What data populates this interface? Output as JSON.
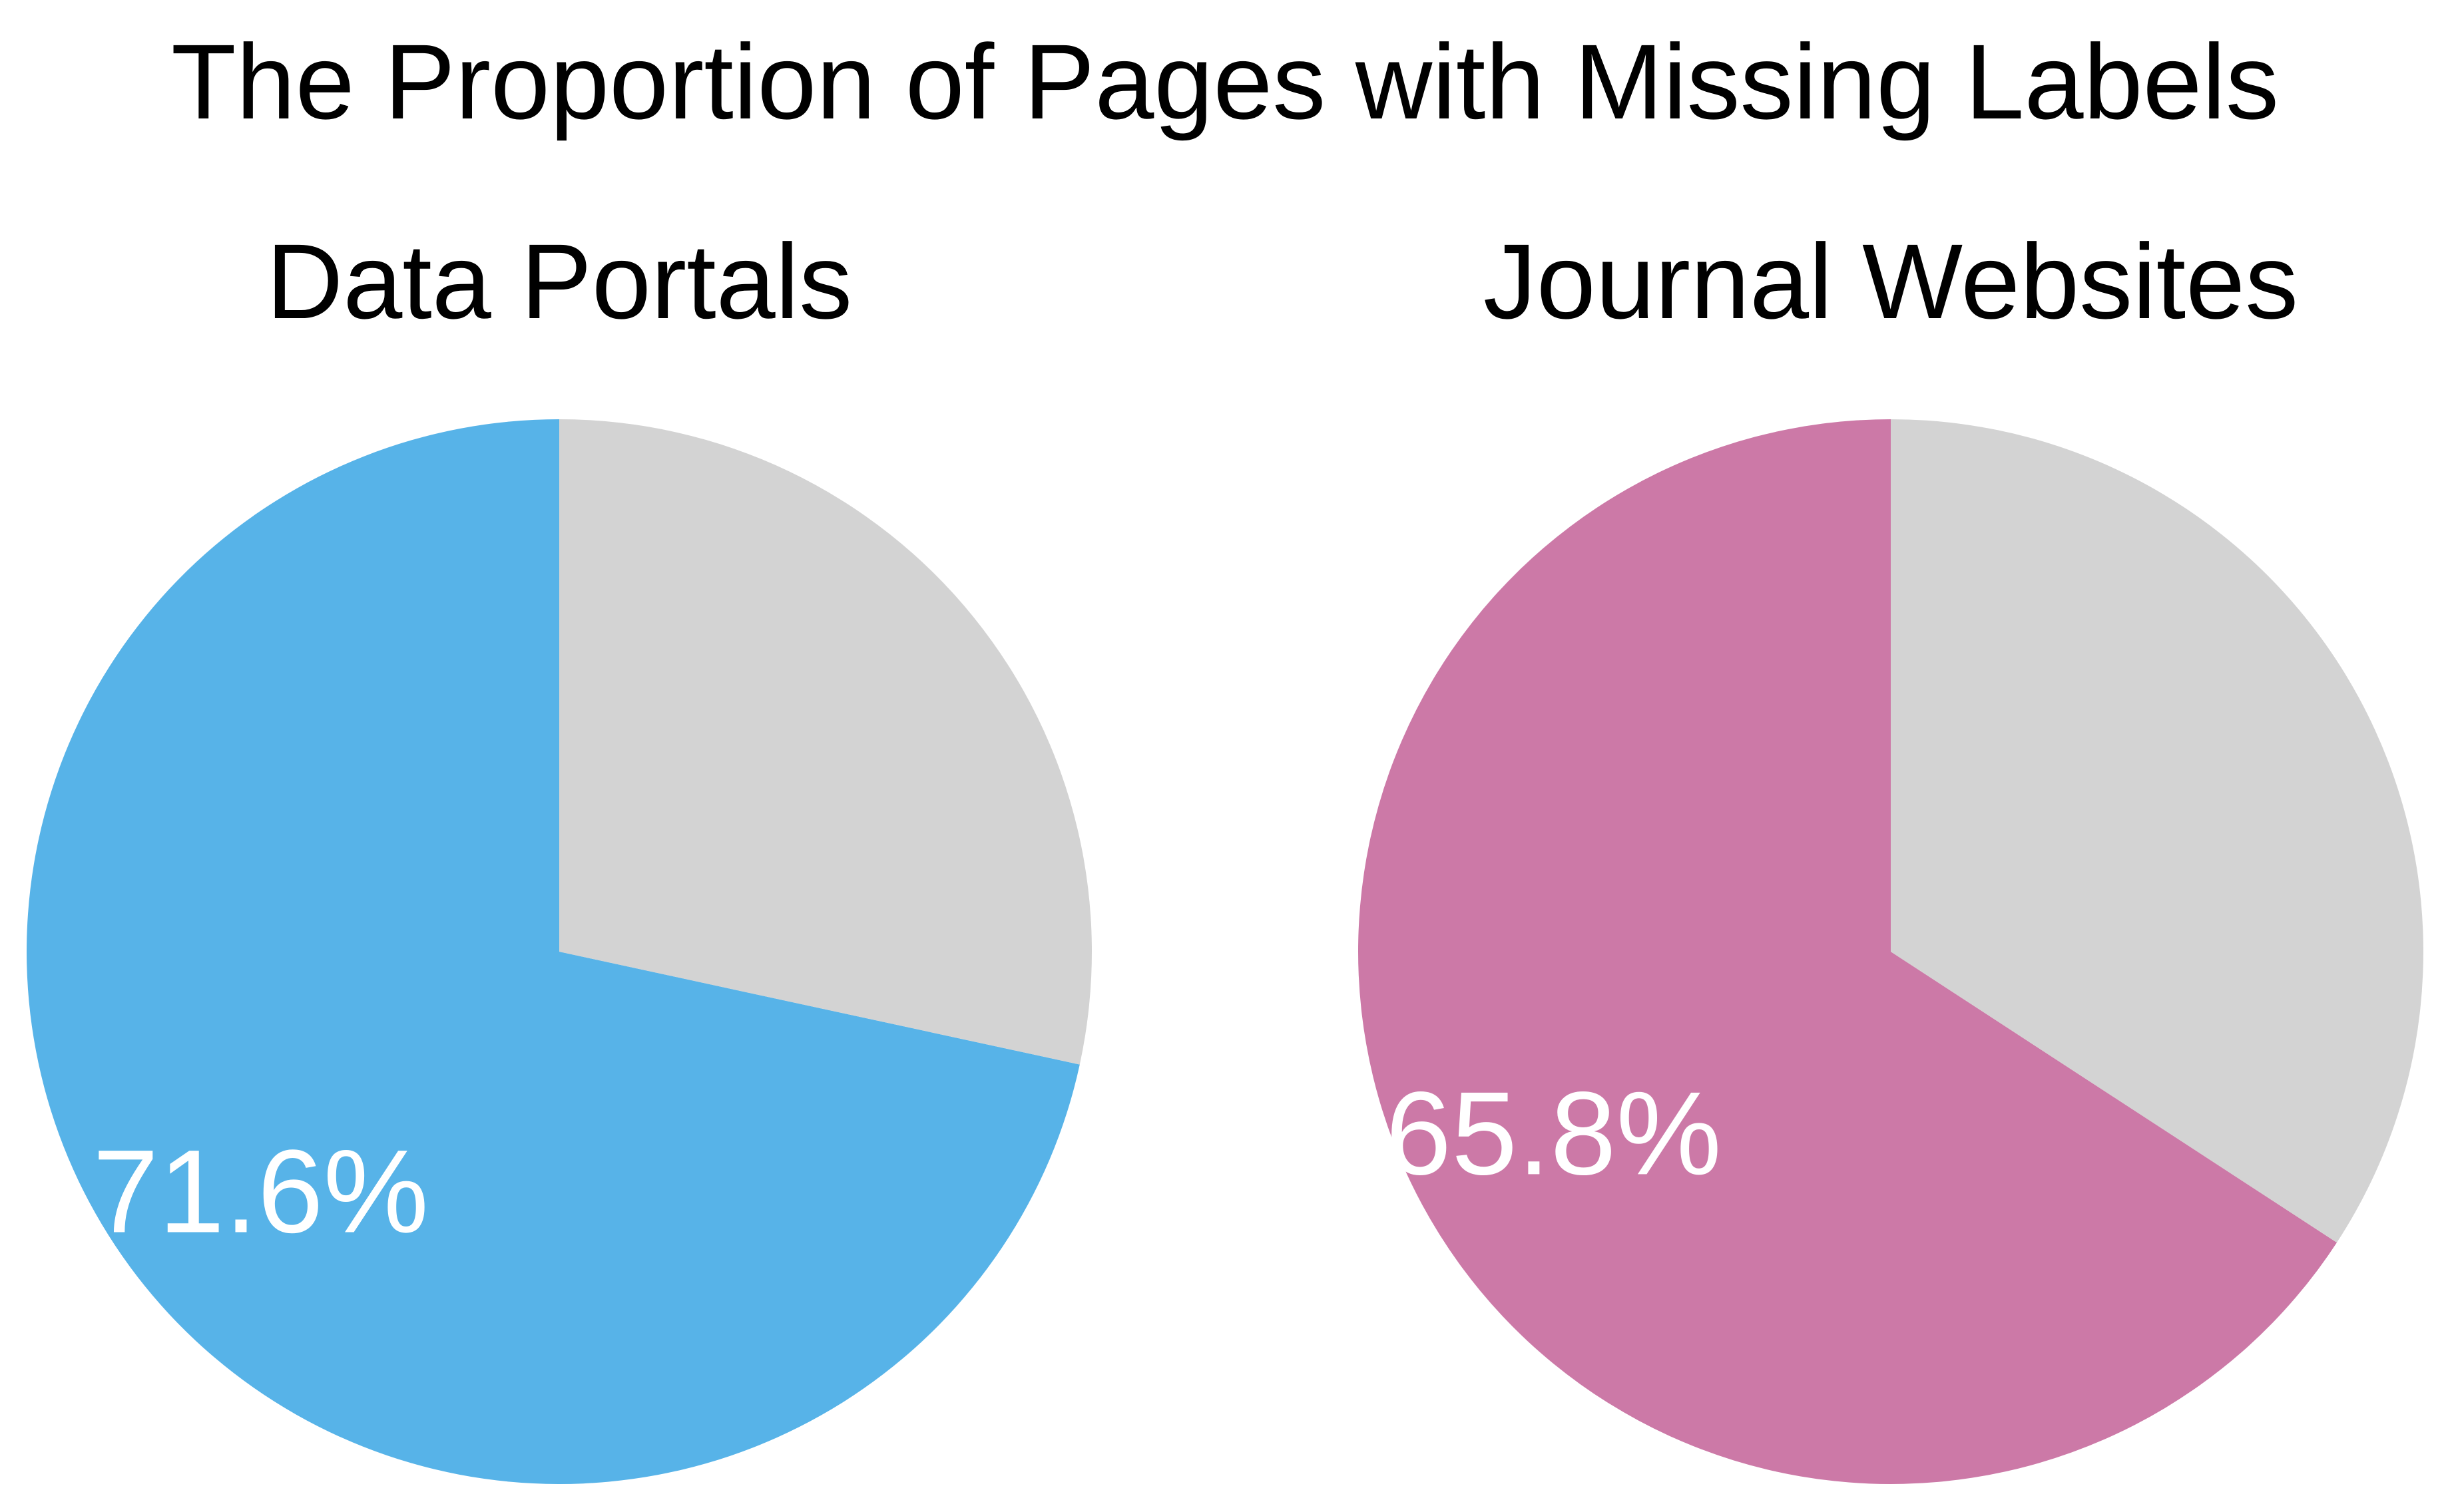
{
  "title": "The Proportion of Pages with Missing Labels",
  "chart_data": [
    {
      "type": "pie",
      "title": "Data Portals",
      "slices": [
        {
          "value": 71.6,
          "color": "#57b3e8",
          "label": "71.6%"
        },
        {
          "value": 28.4,
          "color": "#d3d3d3",
          "label": ""
        }
      ],
      "start_angle_deg": 90,
      "direction": "counterclockwise"
    },
    {
      "type": "pie",
      "title": "Journal Websites",
      "slices": [
        {
          "value": 65.8,
          "color": "#cc79a7",
          "label": "65.8%"
        },
        {
          "value": 34.2,
          "color": "#d3d3d3",
          "label": ""
        }
      ],
      "start_angle_deg": 90,
      "direction": "counterclockwise"
    }
  ]
}
